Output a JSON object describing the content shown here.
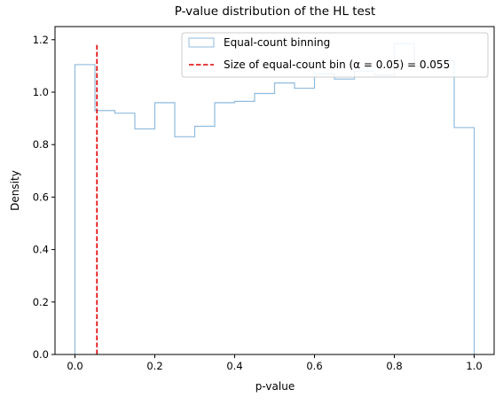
{
  "chart_data": {
    "type": "histogram",
    "title": "P-value distribution of the HL test",
    "xlabel": "p-value",
    "ylabel": "Density",
    "xlim": [
      -0.05,
      1.05
    ],
    "ylim": [
      0,
      1.25
    ],
    "xticks": [
      0.0,
      0.2,
      0.4,
      0.6,
      0.8,
      1.0
    ],
    "xtick_labels": [
      "0.0",
      "0.2",
      "0.4",
      "0.6",
      "0.8",
      "1.0"
    ],
    "yticks": [
      0.0,
      0.2,
      0.4,
      0.6,
      0.8,
      1.0,
      1.2
    ],
    "ytick_labels": [
      "0.0",
      "0.2",
      "0.4",
      "0.6",
      "0.8",
      "1.0",
      "1.2"
    ],
    "bin_edges": [
      0.0,
      0.05,
      0.1,
      0.15,
      0.2,
      0.25,
      0.3,
      0.35,
      0.4,
      0.45,
      0.5,
      0.55,
      0.6,
      0.65,
      0.7,
      0.75,
      0.8,
      0.85,
      0.9,
      0.95,
      1.0
    ],
    "densities": [
      1.105,
      0.93,
      0.92,
      0.86,
      0.96,
      0.83,
      0.87,
      0.96,
      0.965,
      0.995,
      1.035,
      1.015,
      1.07,
      1.05,
      1.08,
      1.065,
      1.185,
      1.1,
      1.12,
      0.865
    ],
    "vline_x": 0.055,
    "vline_ymax": 1.18,
    "hist_color": "#8fbbdf",
    "vline_color": "#e00000",
    "legend_position": "upper right",
    "legend": [
      {
        "label": "Equal-count binning",
        "style": "patch"
      },
      {
        "label": "Size of equal-count bin (α = 0.05) = 0.055",
        "style": "dashed"
      }
    ]
  }
}
